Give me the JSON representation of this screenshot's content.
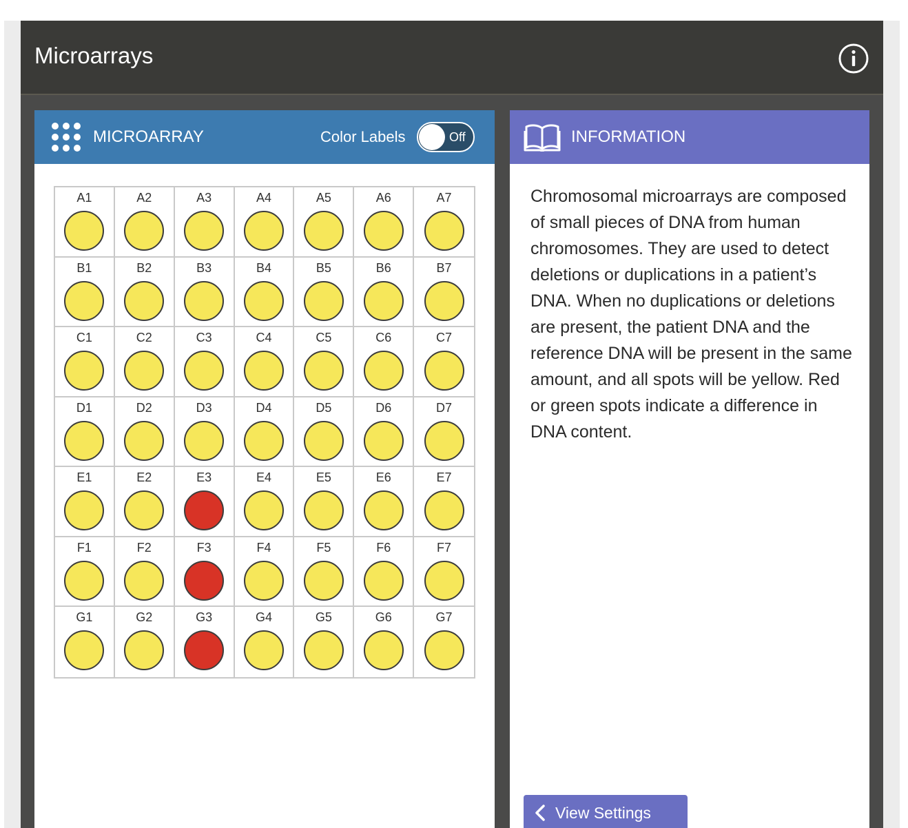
{
  "app": {
    "title": "Microarrays"
  },
  "microarray_panel": {
    "title": "MICROARRAY",
    "color_labels_label": "Color Labels",
    "toggle_state": "Off"
  },
  "info_panel": {
    "title": "INFORMATION",
    "text": "Chromosomal microarrays are composed of small pieces of DNA from human chromosomes. They are used to detect deletions or duplications in a patient’s DNA. When no duplications or deletions are present, the patient DNA and the reference DNA will be present in the same amount, and all spots will be yellow. Red or green spots indicate a difference in DNA content.",
    "view_settings_label": "View Settings"
  },
  "colors": {
    "yellow": "#f6e75a",
    "red": "#d83326"
  },
  "grid": {
    "rows": [
      "A",
      "B",
      "C",
      "D",
      "E",
      "F",
      "G"
    ],
    "cols": [
      1,
      2,
      3,
      4,
      5,
      6,
      7
    ],
    "spots": [
      [
        "yellow",
        "yellow",
        "yellow",
        "yellow",
        "yellow",
        "yellow",
        "yellow"
      ],
      [
        "yellow",
        "yellow",
        "yellow",
        "yellow",
        "yellow",
        "yellow",
        "yellow"
      ],
      [
        "yellow",
        "yellow",
        "yellow",
        "yellow",
        "yellow",
        "yellow",
        "yellow"
      ],
      [
        "yellow",
        "yellow",
        "yellow",
        "yellow",
        "yellow",
        "yellow",
        "yellow"
      ],
      [
        "yellow",
        "yellow",
        "red",
        "yellow",
        "yellow",
        "yellow",
        "yellow"
      ],
      [
        "yellow",
        "yellow",
        "red",
        "yellow",
        "yellow",
        "yellow",
        "yellow"
      ],
      [
        "yellow",
        "yellow",
        "red",
        "yellow",
        "yellow",
        "yellow",
        "yellow"
      ]
    ]
  },
  "icons": {
    "info": "info-circle-icon",
    "microarray": "dot-grid-icon",
    "information": "open-book-icon",
    "back": "chevron-left-icon"
  }
}
